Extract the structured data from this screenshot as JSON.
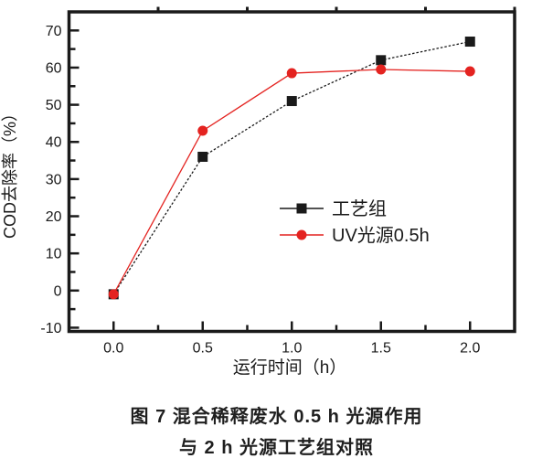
{
  "figure": {
    "caption_line_1": "图 7  混合稀释废水 0.5 h 光源作用",
    "caption_line_2": "与 2 h 光源工艺组对照"
  },
  "chart_data": {
    "type": "line",
    "title": "",
    "xlabel": "运行时间（h）",
    "ylabel": "COD去除率（%）",
    "xlim": [
      -0.25,
      2.25
    ],
    "ylim": [
      -11,
      75
    ],
    "x_ticks": [
      0.0,
      0.5,
      1.0,
      1.5,
      2.0
    ],
    "x_tick_labels": [
      "0.0",
      "0.5",
      "1.0",
      "1.5",
      "2.0"
    ],
    "x_minor_ticks": [
      0.25,
      0.75,
      1.25,
      1.75
    ],
    "top_minor_ticks": [
      0.25,
      0.75,
      1.25,
      1.75,
      2.25
    ],
    "y_ticks": [
      -10,
      0,
      10,
      20,
      30,
      40,
      50,
      60,
      70
    ],
    "y_minor_ticks": [
      -5,
      5,
      15,
      25,
      35,
      45,
      55,
      65
    ],
    "grid": false,
    "legend_position": "inside-center-right",
    "axis_color": "#1a1a1a",
    "x": [
      0.0,
      0.5,
      1.0,
      1.5,
      2.0
    ],
    "series": [
      {
        "name": "工艺组",
        "color": "#1a1a1a",
        "marker": "square",
        "line": "dashed",
        "values": [
          -1,
          36,
          51,
          62,
          67
        ]
      },
      {
        "name": "UV光源0.5h",
        "color": "#e42320",
        "marker": "circle",
        "line": "solid",
        "values": [
          -1,
          43,
          58.5,
          59.5,
          59
        ]
      }
    ]
  }
}
